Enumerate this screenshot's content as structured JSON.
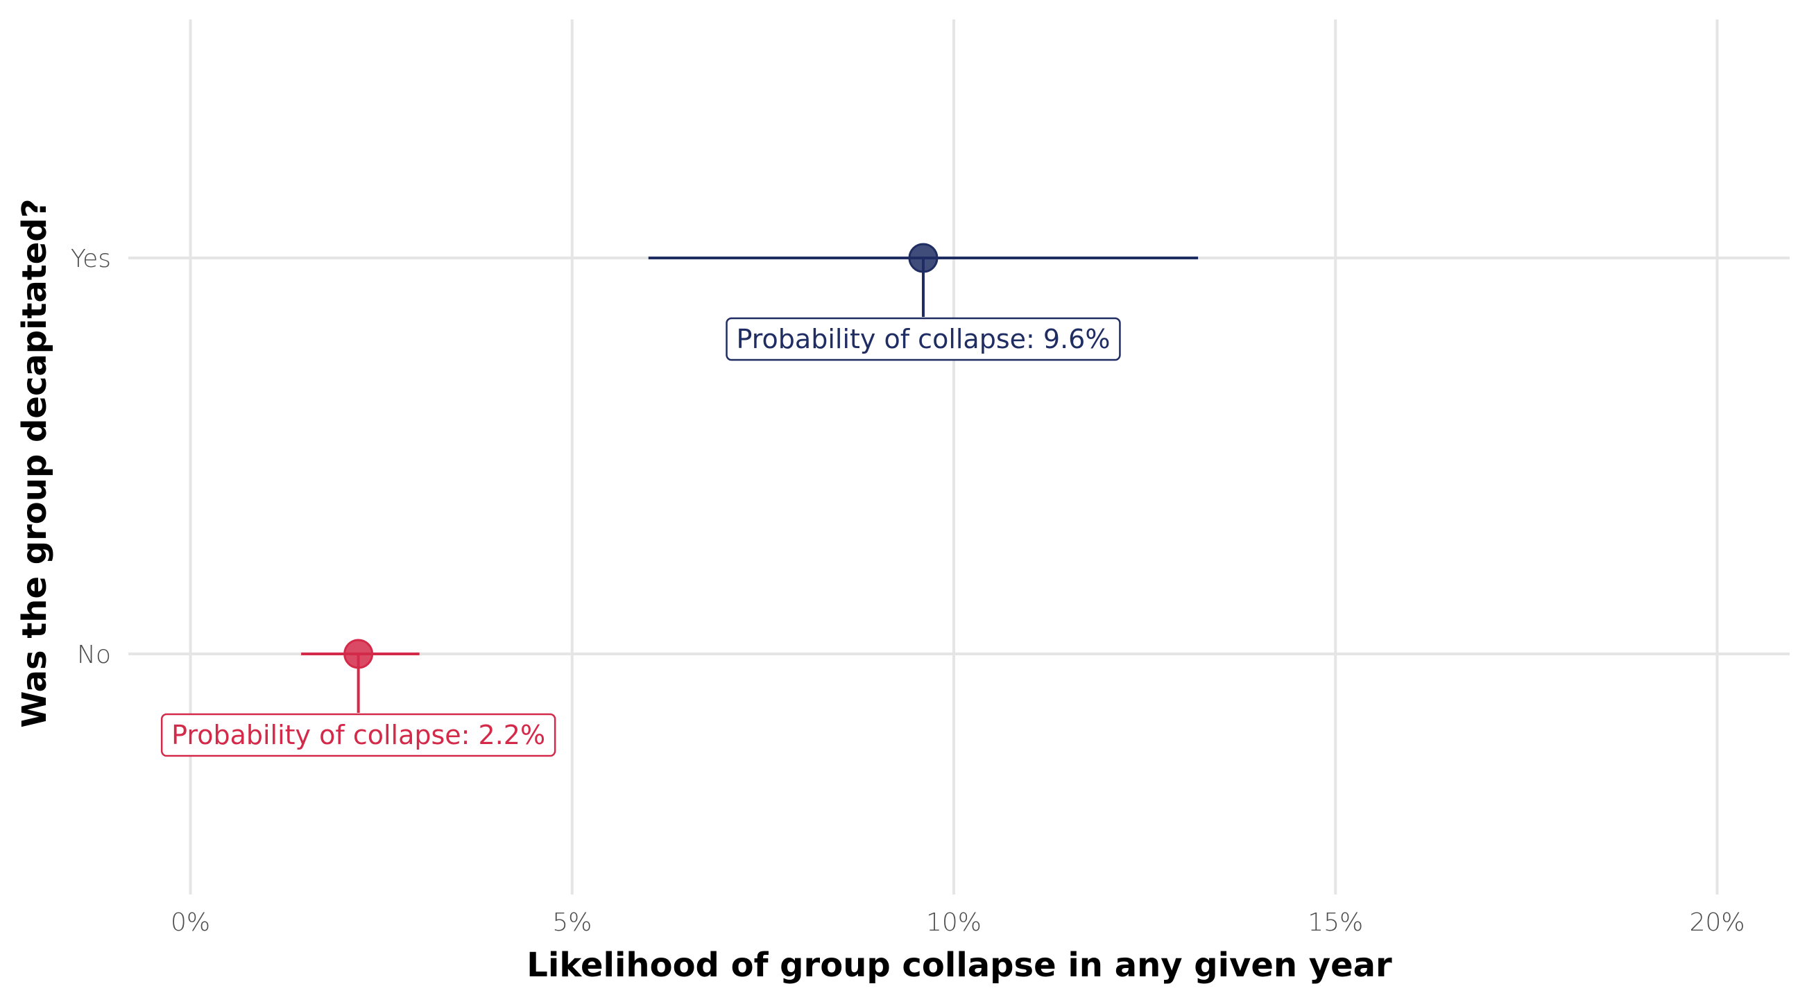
{
  "chart_data": {
    "type": "scatter",
    "xlabel": "Likelihood of group collapse in any given year",
    "ylabel": "Was the group decapitated?",
    "xlim": [
      -0.0095,
      0.2095
    ],
    "x_ticks": [
      {
        "value": 0.0,
        "label": "0%"
      },
      {
        "value": 0.05,
        "label": "5%"
      },
      {
        "value": 0.1,
        "label": "10%"
      },
      {
        "value": 0.15,
        "label": "15%"
      },
      {
        "value": 0.2,
        "label": "20%"
      }
    ],
    "categories": [
      "No",
      "Yes"
    ],
    "grid": true,
    "legend": "none",
    "points": [
      {
        "category": "Yes",
        "estimate": 0.096,
        "ci_low": 0.06,
        "ci_high": 0.132,
        "color": "#1f2d63",
        "annotation": "Probability of collapse: 9.6%"
      },
      {
        "category": "No",
        "estimate": 0.022,
        "ci_low": 0.0145,
        "ci_high": 0.03,
        "color": "#d42a4a",
        "annotation": "Probability of collapse: 2.2%"
      }
    ]
  }
}
